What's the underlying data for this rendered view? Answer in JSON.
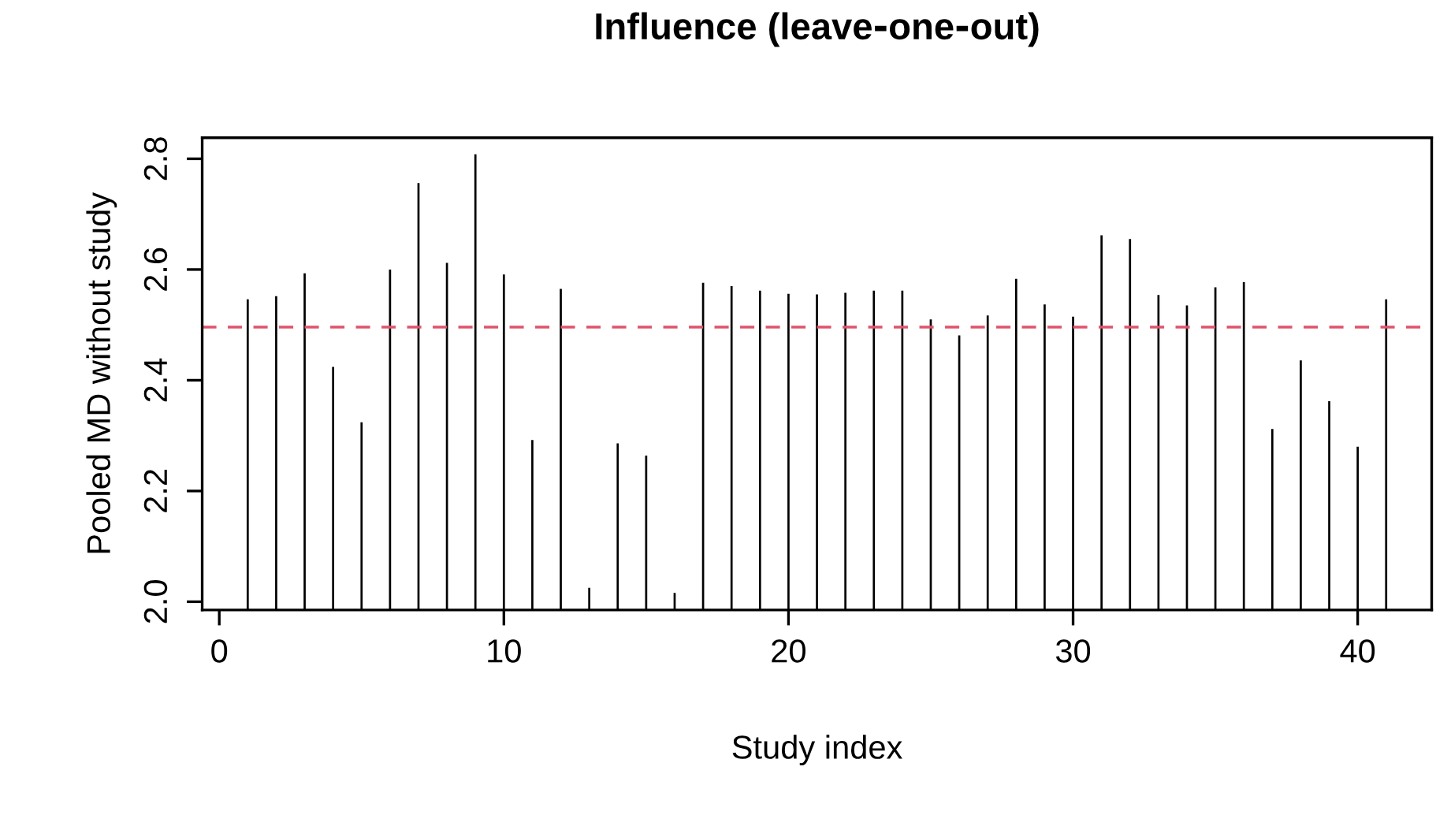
{
  "chart_data": {
    "type": "bar",
    "title": "Influence (leave‑one‑out)",
    "xlabel": "Study index",
    "ylabel": "Pooled MD without study",
    "x": [
      1,
      2,
      3,
      4,
      5,
      6,
      7,
      8,
      9,
      10,
      11,
      12,
      13,
      14,
      15,
      16,
      17,
      18,
      19,
      20,
      21,
      22,
      23,
      24,
      25,
      26,
      27,
      28,
      29,
      30,
      31,
      32,
      33,
      34,
      35,
      36,
      37,
      38,
      39,
      40,
      41
    ],
    "series": [
      {
        "color": "#000000",
        "values": [
          2.546,
          2.552,
          2.593,
          2.424,
          2.324,
          2.6,
          2.756,
          2.612,
          2.808,
          2.591,
          2.292,
          2.565,
          2.025,
          2.286,
          2.264,
          2.016,
          2.576,
          2.57,
          2.562,
          2.556,
          2.555,
          2.558,
          2.562,
          2.562,
          2.51,
          2.481,
          2.517,
          2.583,
          2.537,
          2.515,
          2.662,
          2.655,
          2.554,
          2.535,
          2.568,
          2.577,
          2.312,
          2.436,
          2.362,
          2.28,
          2.546
        ]
      }
    ],
    "xlim": [
      -0.6,
      42.6
    ],
    "ylim": [
      1.985,
      2.838
    ],
    "xticks": [
      0,
      10,
      20,
      30,
      40
    ],
    "yticks": [
      {
        "value": 2.0,
        "label": "2.0"
      },
      2.2,
      2.4,
      2.6,
      2.8
    ],
    "ref_lines": [
      {
        "axis": "y",
        "value": 2.496,
        "color": "#df536b",
        "line_style": "dashed"
      }
    ]
  }
}
